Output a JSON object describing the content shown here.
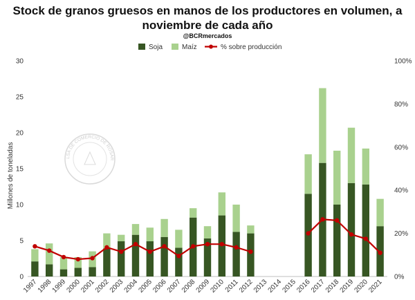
{
  "chart_data": {
    "type": "bar",
    "title": "Stock de granos gruesos en manos de los productores en volumen, a noviembre de cada año",
    "subtitle": "@BCRmercados",
    "ylabel": "Millones de toneladas",
    "ylim": [
      0,
      30
    ],
    "yticks": [
      "0",
      "5",
      "10",
      "15",
      "20",
      "25",
      "30"
    ],
    "y2lim": [
      0,
      1
    ],
    "y2ticks": [
      "0%",
      "20%",
      "40%",
      "60%",
      "80%",
      "100%"
    ],
    "stacked": true,
    "legend_position": "top",
    "grid": false,
    "categories": [
      "1997",
      "1998",
      "1999",
      "2000",
      "2001",
      "2002",
      "2003",
      "2004",
      "2005",
      "2006",
      "2007",
      "2008",
      "2009",
      "2010",
      "2011",
      "2012",
      "2013",
      "2014",
      "2015",
      "2016",
      "2017",
      "2018",
      "2019",
      "2020",
      "2021"
    ],
    "series": [
      {
        "name": "Soja",
        "type": "bar",
        "color": "#375623",
        "values": [
          2.1,
          1.7,
          1.0,
          1.2,
          1.3,
          3.9,
          4.9,
          5.8,
          4.9,
          5.5,
          4.0,
          8.2,
          5.3,
          8.5,
          6.2,
          6.0,
          null,
          null,
          null,
          11.5,
          15.8,
          10.0,
          13.0,
          12.8,
          7.0
        ]
      },
      {
        "name": "Maíz",
        "type": "bar",
        "color": "#a9d18e",
        "values": [
          1.7,
          2.9,
          1.7,
          1.5,
          2.2,
          2.1,
          0.9,
          1.5,
          1.9,
          2.5,
          2.5,
          1.3,
          1.7,
          3.2,
          3.8,
          1.1,
          null,
          null,
          null,
          5.5,
          10.4,
          7.5,
          7.7,
          5.0,
          3.8
        ]
      },
      {
        "name": "% sobre producción",
        "type": "line",
        "axis": "secondary",
        "color": "#c00000",
        "values": [
          0.14,
          0.12,
          0.09,
          0.08,
          0.085,
          0.135,
          0.115,
          0.15,
          0.115,
          0.14,
          0.095,
          0.14,
          0.15,
          0.15,
          0.135,
          0.115,
          null,
          null,
          null,
          0.2,
          0.265,
          0.26,
          0.195,
          0.175,
          0.11
        ]
      }
    ],
    "watermark": "BOLSA DE COMERCIO DE ROSARIO"
  }
}
